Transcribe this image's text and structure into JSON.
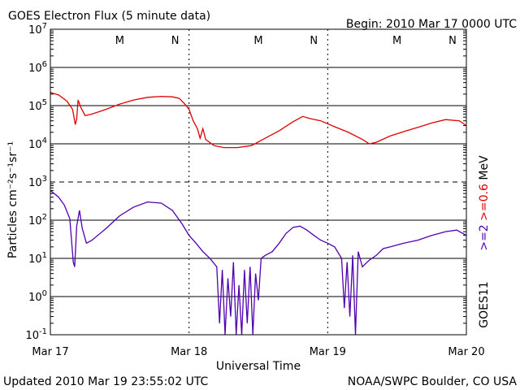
{
  "chart_data": {
    "type": "line",
    "title": "GOES Electron Flux (5 minute data)",
    "begin": "Begin: 2010 Mar 17 0000 UTC",
    "xlabel": "Universal Time",
    "ylabel": "Particles cm⁻²s⁻¹sr⁻¹",
    "updated": "Updated 2010 Mar 19 23:55:02 UTC",
    "credit": "NOAA/SWPC Boulder, CO USA",
    "satellite": "GOES11",
    "energy_label": {
      "upper": ">=0.6",
      "sep": " ",
      "lower": ">=2",
      "unit": "MeV"
    },
    "y_scale": "log",
    "ylim": [
      0.1,
      10000000
    ],
    "y_ticks": [
      {
        "base": "10",
        "exp": "-1"
      },
      {
        "base": "10",
        "exp": "0"
      },
      {
        "base": "10",
        "exp": "1"
      },
      {
        "base": "10",
        "exp": "2"
      },
      {
        "base": "10",
        "exp": "3"
      },
      {
        "base": "10",
        "exp": "4"
      },
      {
        "base": "10",
        "exp": "5"
      },
      {
        "base": "10",
        "exp": "6"
      },
      {
        "base": "10",
        "exp": "7"
      }
    ],
    "x_ticks": [
      "Mar 17",
      "Mar 18",
      "Mar 19",
      "Mar 20"
    ],
    "xlim_days": [
      0,
      3
    ],
    "markers": [
      {
        "label": "M",
        "day": 0.5
      },
      {
        "label": "N",
        "day": 0.9
      },
      {
        "label": "M",
        "day": 1.5
      },
      {
        "label": "N",
        "day": 1.9
      },
      {
        "label": "M",
        "day": 2.5
      },
      {
        "label": "N",
        "day": 2.9
      }
    ],
    "colors": {
      "upper": "#e00000",
      "lower": "#5000b0",
      "markers": "#cc0000"
    },
    "series": [
      {
        "key": "upper",
        "points": [
          [
            0.0,
            220000
          ],
          [
            0.06,
            190000
          ],
          [
            0.12,
            130000
          ],
          [
            0.16,
            80000
          ],
          [
            0.18,
            32000
          ],
          [
            0.19,
            45000
          ],
          [
            0.2,
            140000
          ],
          [
            0.22,
            90000
          ],
          [
            0.25,
            55000
          ],
          [
            0.3,
            60000
          ],
          [
            0.4,
            80000
          ],
          [
            0.5,
            110000
          ],
          [
            0.6,
            140000
          ],
          [
            0.7,
            165000
          ],
          [
            0.8,
            175000
          ],
          [
            0.88,
            170000
          ],
          [
            0.93,
            155000
          ],
          [
            0.97,
            110000
          ],
          [
            1.0,
            80000
          ],
          [
            1.03,
            40000
          ],
          [
            1.06,
            25000
          ],
          [
            1.08,
            14000
          ],
          [
            1.1,
            25000
          ],
          [
            1.12,
            13000
          ],
          [
            1.18,
            9000
          ],
          [
            1.25,
            8000
          ],
          [
            1.35,
            8000
          ],
          [
            1.45,
            9000
          ],
          [
            1.55,
            14000
          ],
          [
            1.65,
            22000
          ],
          [
            1.75,
            38000
          ],
          [
            1.82,
            52000
          ],
          [
            1.88,
            45000
          ],
          [
            1.95,
            40000
          ],
          [
            2.05,
            28000
          ],
          [
            2.15,
            20000
          ],
          [
            2.25,
            13000
          ],
          [
            2.3,
            10000
          ],
          [
            2.35,
            11000
          ],
          [
            2.45,
            16000
          ],
          [
            2.55,
            21000
          ],
          [
            2.65,
            27000
          ],
          [
            2.75,
            35000
          ],
          [
            2.85,
            43000
          ],
          [
            2.95,
            40000
          ],
          [
            3.0,
            30000
          ]
        ]
      },
      {
        "key": "lower",
        "points": [
          [
            0.0,
            600
          ],
          [
            0.06,
            400
          ],
          [
            0.1,
            250
          ],
          [
            0.14,
            110
          ],
          [
            0.165,
            8
          ],
          [
            0.175,
            6
          ],
          [
            0.19,
            70
          ],
          [
            0.21,
            180
          ],
          [
            0.23,
            60
          ],
          [
            0.26,
            25
          ],
          [
            0.3,
            30
          ],
          [
            0.4,
            60
          ],
          [
            0.5,
            130
          ],
          [
            0.6,
            220
          ],
          [
            0.7,
            300
          ],
          [
            0.8,
            280
          ],
          [
            0.88,
            180
          ],
          [
            0.95,
            80
          ],
          [
            1.0,
            40
          ],
          [
            1.05,
            25
          ],
          [
            1.1,
            15
          ],
          [
            1.15,
            10
          ],
          [
            1.2,
            6
          ],
          [
            1.22,
            0.2
          ],
          [
            1.24,
            5
          ],
          [
            1.26,
            0.1
          ],
          [
            1.28,
            3
          ],
          [
            1.3,
            0.3
          ],
          [
            1.32,
            8
          ],
          [
            1.34,
            0.1
          ],
          [
            1.36,
            2
          ],
          [
            1.38,
            0.1
          ],
          [
            1.4,
            5
          ],
          [
            1.42,
            0.2
          ],
          [
            1.44,
            6
          ],
          [
            1.46,
            0.1
          ],
          [
            1.48,
            4
          ],
          [
            1.5,
            0.8
          ],
          [
            1.52,
            10
          ],
          [
            1.55,
            12
          ],
          [
            1.6,
            15
          ],
          [
            1.65,
            25
          ],
          [
            1.7,
            45
          ],
          [
            1.75,
            65
          ],
          [
            1.8,
            70
          ],
          [
            1.85,
            55
          ],
          [
            1.9,
            40
          ],
          [
            1.95,
            30
          ],
          [
            2.0,
            25
          ],
          [
            2.05,
            20
          ],
          [
            2.1,
            10
          ],
          [
            2.12,
            0.5
          ],
          [
            2.14,
            8
          ],
          [
            2.16,
            0.3
          ],
          [
            2.18,
            12
          ],
          [
            2.2,
            0.1
          ],
          [
            2.22,
            15
          ],
          [
            2.25,
            6
          ],
          [
            2.3,
            9
          ],
          [
            2.35,
            12
          ],
          [
            2.4,
            18
          ],
          [
            2.45,
            20
          ],
          [
            2.55,
            25
          ],
          [
            2.65,
            30
          ],
          [
            2.75,
            40
          ],
          [
            2.85,
            50
          ],
          [
            2.93,
            55
          ],
          [
            3.0,
            40
          ]
        ]
      }
    ],
    "grid": true,
    "dashed_level": "10^3"
  }
}
